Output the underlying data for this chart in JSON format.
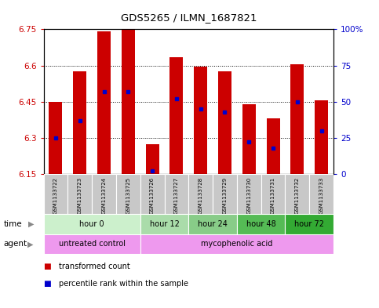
{
  "title": "GDS5265 / ILMN_1687821",
  "samples": [
    "GSM1133722",
    "GSM1133723",
    "GSM1133724",
    "GSM1133725",
    "GSM1133726",
    "GSM1133727",
    "GSM1133728",
    "GSM1133729",
    "GSM1133730",
    "GSM1133731",
    "GSM1133732",
    "GSM1133733"
  ],
  "transformed_counts": [
    6.45,
    6.575,
    6.74,
    6.75,
    6.275,
    6.635,
    6.595,
    6.575,
    6.44,
    6.38,
    6.605,
    6.455
  ],
  "base_value": 6.15,
  "percentile_ranks": [
    25,
    37,
    57,
    57,
    2,
    52,
    45,
    43,
    22,
    18,
    50,
    30
  ],
  "ylim_left": [
    6.15,
    6.75
  ],
  "ylim_right": [
    0,
    100
  ],
  "yticks_left": [
    6.15,
    6.3,
    6.45,
    6.6,
    6.75
  ],
  "yticks_right": [
    0,
    25,
    50,
    75,
    100
  ],
  "ytick_right_labels": [
    "0",
    "25",
    "50",
    "75",
    "100%"
  ],
  "time_groups": [
    {
      "label": "hour 0",
      "samples": [
        0,
        1,
        2,
        3
      ],
      "color": "#ccf0cc"
    },
    {
      "label": "hour 12",
      "samples": [
        4,
        5
      ],
      "color": "#aadcaa"
    },
    {
      "label": "hour 24",
      "samples": [
        6,
        7
      ],
      "color": "#88cc88"
    },
    {
      "label": "hour 48",
      "samples": [
        8,
        9
      ],
      "color": "#55bb55"
    },
    {
      "label": "hour 72",
      "samples": [
        10,
        11
      ],
      "color": "#33aa33"
    }
  ],
  "bar_color": "#cc0000",
  "dot_color": "#0000cc",
  "left_tick_color": "#cc0000",
  "right_tick_color": "#0000cc",
  "agent_uc_color": "#ee99ee",
  "agent_ma_color": "#ee99ee",
  "legend_items": [
    {
      "label": "transformed count",
      "color": "#cc0000"
    },
    {
      "label": "percentile rank within the sample",
      "color": "#0000cc"
    }
  ]
}
